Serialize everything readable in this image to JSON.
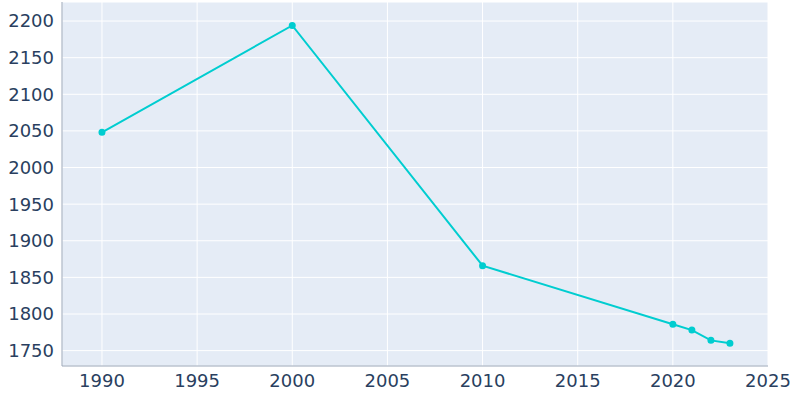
{
  "chart_data": {
    "type": "line",
    "x": [
      1990,
      2000,
      2010,
      2020,
      2021,
      2022,
      2023
    ],
    "values": [
      2048,
      2194,
      1866,
      1786,
      1778,
      1764,
      1760
    ],
    "color": "#00cdd0",
    "marker": "circle",
    "xlim": [
      1987.9,
      2025
    ],
    "xticks": [
      1990,
      1995,
      2000,
      2005,
      2010,
      2015,
      2020,
      2025
    ],
    "ylim": [
      1729,
      2226
    ],
    "yticks": [
      1750,
      1800,
      1850,
      1900,
      1950,
      2000,
      2050,
      2100,
      2150,
      2200
    ],
    "grid": true
  }
}
